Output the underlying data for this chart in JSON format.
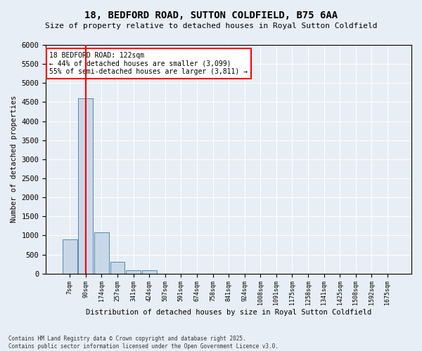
{
  "title": "18, BEDFORD ROAD, SUTTON COLDFIELD, B75 6AA",
  "subtitle": "Size of property relative to detached houses in Royal Sutton Coldfield",
  "xlabel": "Distribution of detached houses by size in Royal Sutton Coldfield",
  "ylabel": "Number of detached properties",
  "bar_color": "#c8d8e8",
  "bar_edge_color": "#5588aa",
  "vline_color": "red",
  "vline_x": 1,
  "annotation_title": "18 BEDFORD ROAD: 122sqm",
  "annotation_line1": "← 44% of detached houses are smaller (3,099)",
  "annotation_line2": "55% of semi-detached houses are larger (3,811) →",
  "categories": [
    "7sqm",
    "90sqm",
    "174sqm",
    "257sqm",
    "341sqm",
    "424sqm",
    "507sqm",
    "591sqm",
    "674sqm",
    "758sqm",
    "841sqm",
    "924sqm",
    "1008sqm",
    "1091sqm",
    "1175sqm",
    "1258sqm",
    "1341sqm",
    "1425sqm",
    "1508sqm",
    "1592sqm",
    "1675sqm"
  ],
  "values": [
    900,
    4600,
    1080,
    300,
    90,
    90,
    0,
    0,
    0,
    0,
    0,
    0,
    0,
    0,
    0,
    0,
    0,
    0,
    0,
    0,
    0
  ],
  "ylim": [
    0,
    6000
  ],
  "yticks": [
    0,
    500,
    1000,
    1500,
    2000,
    2500,
    3000,
    3500,
    4000,
    4500,
    5000,
    5500,
    6000
  ],
  "footer": "Contains HM Land Registry data © Crown copyright and database right 2025.\nContains public sector information licensed under the Open Government Licence v3.0.",
  "background_color": "#e8eef5",
  "plot_background_color": "#e8eef5"
}
